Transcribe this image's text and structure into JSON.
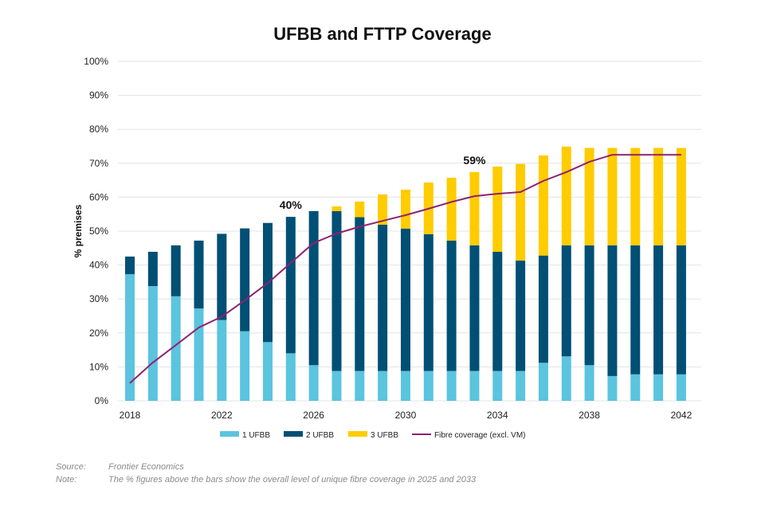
{
  "chart_data": {
    "type": "bar",
    "stacked": true,
    "title": "UFBB and FTTP Coverage",
    "xlabel": "",
    "ylabel": "% premises",
    "ylim": [
      0,
      100
    ],
    "y_ticks": [
      "0%",
      "10%",
      "20%",
      "30%",
      "40%",
      "50%",
      "60%",
      "70%",
      "80%",
      "90%",
      "100%"
    ],
    "y_tick_values": [
      0,
      10,
      20,
      30,
      40,
      50,
      60,
      70,
      80,
      90,
      100
    ],
    "x_tick_labels": [
      "2018",
      "2022",
      "2026",
      "2030",
      "2034",
      "2038",
      "2042"
    ],
    "grid": true,
    "legend_position": "bottom",
    "categories": [
      "2018",
      "2019",
      "2020",
      "2021",
      "2022",
      "2023",
      "2024",
      "2025",
      "2026",
      "2027",
      "2028",
      "2029",
      "2030",
      "2031",
      "2032",
      "2033",
      "2034",
      "2035",
      "2036",
      "2037",
      "2038",
      "2039",
      "2040",
      "2041",
      "2042"
    ],
    "series": [
      {
        "name": "1 UFBB",
        "kind": "bar",
        "color": "#5BC4DE",
        "values": [
          37.3,
          33.8,
          30.8,
          27.2,
          23.8,
          20.5,
          17.3,
          14.0,
          10.5,
          8.8,
          8.8,
          8.8,
          8.8,
          8.8,
          8.8,
          8.8,
          8.8,
          8.8,
          11.2,
          13.1,
          10.5,
          7.3,
          7.8,
          7.8,
          7.8
        ]
      },
      {
        "name": "2 UFBB",
        "kind": "bar",
        "color": "#004F74",
        "values": [
          5.2,
          10.1,
          15.0,
          20.0,
          25.4,
          30.3,
          35.1,
          40.2,
          45.4,
          47.1,
          45.3,
          43.1,
          41.9,
          40.3,
          38.4,
          37.0,
          35.1,
          32.5,
          31.6,
          32.7,
          35.3,
          38.5,
          38.0,
          38.0,
          38.0
        ]
      },
      {
        "name": "3 UFBB",
        "kind": "bar",
        "color": "#FFCC00",
        "values": [
          0,
          0,
          0,
          0,
          0,
          0,
          0,
          0,
          0,
          1.4,
          4.6,
          8.9,
          11.5,
          15.2,
          18.5,
          21.6,
          25.1,
          28.5,
          29.5,
          29.1,
          28.7,
          28.7,
          28.7,
          28.7,
          28.7
        ]
      },
      {
        "name": "Fibre coverage (excl. VM)",
        "kind": "line",
        "color": "#8E2272",
        "values": [
          5.2,
          11.3,
          16.4,
          21.6,
          24.8,
          29.6,
          34.7,
          40.6,
          46.5,
          49.3,
          51.3,
          53.0,
          54.7,
          56.6,
          58.6,
          60.3,
          61.0,
          61.5,
          64.8,
          67.4,
          70.4,
          72.5,
          72.5,
          72.5,
          72.5
        ]
      }
    ],
    "annotations": [
      {
        "text": "40%",
        "category": "2025"
      },
      {
        "text": "59%",
        "category": "2033"
      }
    ]
  },
  "footer": {
    "source_key": "Source:",
    "source_value": "Frontier Economics",
    "note_key": "Note:",
    "note_value": "The % figures above the bars show the overall level of unique fibre coverage in 2025 and 2033"
  }
}
